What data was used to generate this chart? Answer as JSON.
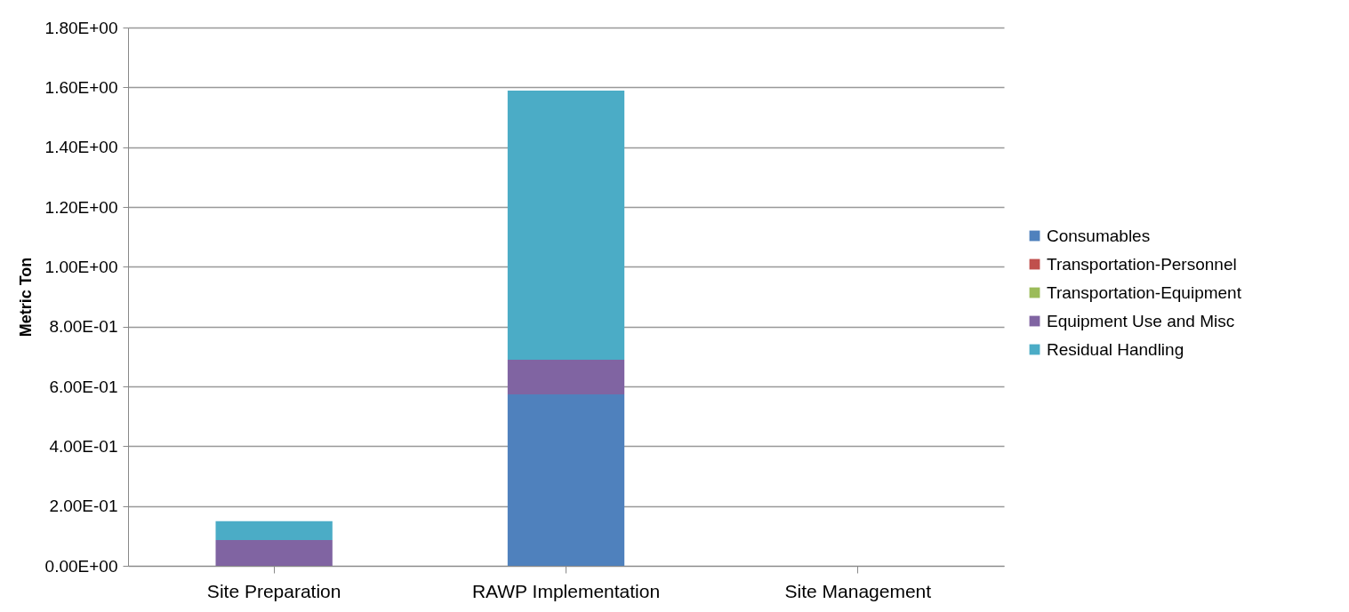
{
  "chart_data": {
    "type": "bar",
    "stacked": true,
    "ylabel": "Metric Ton",
    "categories": [
      "Site Preparation",
      "RAWP Implementation",
      "Site Management"
    ],
    "series": [
      {
        "name": "Consumables",
        "color": "#4f81bd",
        "values": [
          0,
          0.573,
          0
        ]
      },
      {
        "name": "Transportation-Personnel",
        "color": "#c0504d",
        "values": [
          0,
          0,
          0
        ]
      },
      {
        "name": "Transportation-Equipment",
        "color": "#9bbb59",
        "values": [
          0,
          0,
          0
        ]
      },
      {
        "name": "Equipment Use and Misc",
        "color": "#8064a2",
        "values": [
          0.086,
          0.116,
          0
        ]
      },
      {
        "name": "Residual Handling",
        "color": "#4bacc6",
        "values": [
          0.063,
          0.9,
          0
        ]
      }
    ],
    "ylim": [
      0,
      1.8
    ],
    "yticks": [
      {
        "value": 0,
        "label": "0.00E+00"
      },
      {
        "value": 0.2,
        "label": "2.00E-01"
      },
      {
        "value": 0.4,
        "label": "4.00E-01"
      },
      {
        "value": 0.6,
        "label": "6.00E-01"
      },
      {
        "value": 0.8,
        "label": "8.00E-01"
      },
      {
        "value": 1,
        "label": "1.00E+00"
      },
      {
        "value": 1.2,
        "label": "1.20E+00"
      },
      {
        "value": 1.4,
        "label": "1.40E+00"
      },
      {
        "value": 1.6,
        "label": "1.60E+00"
      },
      {
        "value": 1.8,
        "label": "1.80E+00"
      }
    ],
    "grid": "y",
    "legend": "right"
  }
}
